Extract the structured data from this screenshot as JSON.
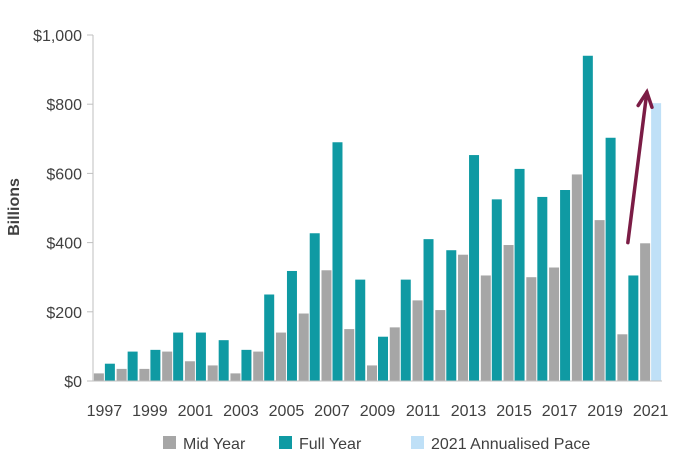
{
  "chart_data": {
    "type": "bar",
    "ylabel": "Billions",
    "ylim": [
      0,
      1000
    ],
    "y_ticks": [
      "$0",
      "$200",
      "$400",
      "$600",
      "$800",
      "$1,000"
    ],
    "y_tick_values": [
      0,
      200,
      400,
      600,
      800,
      1000
    ],
    "categories": [
      "1997",
      "1998",
      "1999",
      "2000",
      "2001",
      "2002",
      "2003",
      "2004",
      "2005",
      "2006",
      "2007",
      "2008",
      "2009",
      "2010",
      "2011",
      "2012",
      "2013",
      "2014",
      "2015",
      "2016",
      "2017",
      "2018",
      "2019",
      "2020",
      "2021"
    ],
    "x_tick_labels": [
      "1997",
      "",
      "1999",
      "",
      "2001",
      "",
      "2003",
      "",
      "2005",
      "",
      "2007",
      "",
      "2009",
      "",
      "2011",
      "",
      "2013",
      "",
      "2015",
      "",
      "2017",
      "",
      "2019",
      "",
      "2021"
    ],
    "series": [
      {
        "name": "Mid Year",
        "color": "#a6a6a6",
        "values": [
          22,
          35,
          35,
          85,
          57,
          45,
          22,
          85,
          140,
          195,
          320,
          150,
          45,
          155,
          233,
          205,
          365,
          305,
          393,
          300,
          328,
          597,
          465,
          135,
          398
        ]
      },
      {
        "name": "Full Year",
        "color": "#0f9aa3",
        "values": [
          50,
          85,
          90,
          140,
          140,
          118,
          90,
          250,
          318,
          427,
          690,
          293,
          128,
          293,
          410,
          378,
          653,
          525,
          613,
          532,
          552,
          940,
          703,
          305,
          null
        ]
      },
      {
        "name": "2021 Annualised Pace",
        "color": "#bfe0f7",
        "values": [
          null,
          null,
          null,
          null,
          null,
          null,
          null,
          null,
          null,
          null,
          null,
          null,
          null,
          null,
          null,
          null,
          null,
          null,
          null,
          null,
          null,
          null,
          null,
          null,
          803
        ]
      }
    ],
    "annotation": {
      "type": "arrow",
      "color": "#7b1c45",
      "from": {
        "x": "2020",
        "y": 400
      },
      "to": {
        "x": "2020",
        "y": 835
      }
    },
    "grid": false,
    "legend_position": "bottom"
  }
}
